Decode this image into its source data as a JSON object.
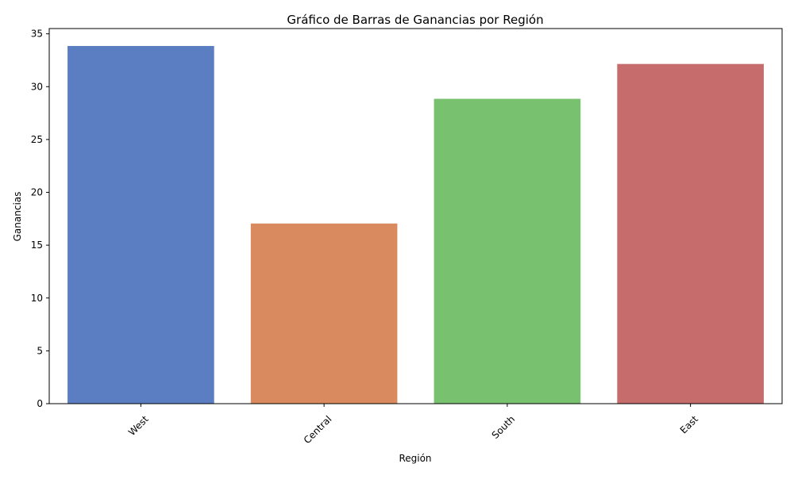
{
  "chart_data": {
    "type": "bar",
    "title": "Gráfico de Barras de Ganancias por Región",
    "xlabel": "Región",
    "ylabel": "Ganancias",
    "categories": [
      "West",
      "Central",
      "South",
      "East"
    ],
    "values": [
      33.85,
      17.05,
      28.85,
      32.15
    ],
    "colors": [
      "#5b7ec2",
      "#d98a5e",
      "#77c16f",
      "#c66c6c"
    ],
    "ylim": [
      0,
      35.5
    ],
    "yticks": [
      0,
      5,
      10,
      15,
      20,
      25,
      30,
      35
    ],
    "ytick_labels": [
      "0",
      "5",
      "10",
      "15",
      "20",
      "25",
      "30",
      "35"
    ],
    "xtick_rotation": 45,
    "grid": false,
    "legend": "none"
  }
}
